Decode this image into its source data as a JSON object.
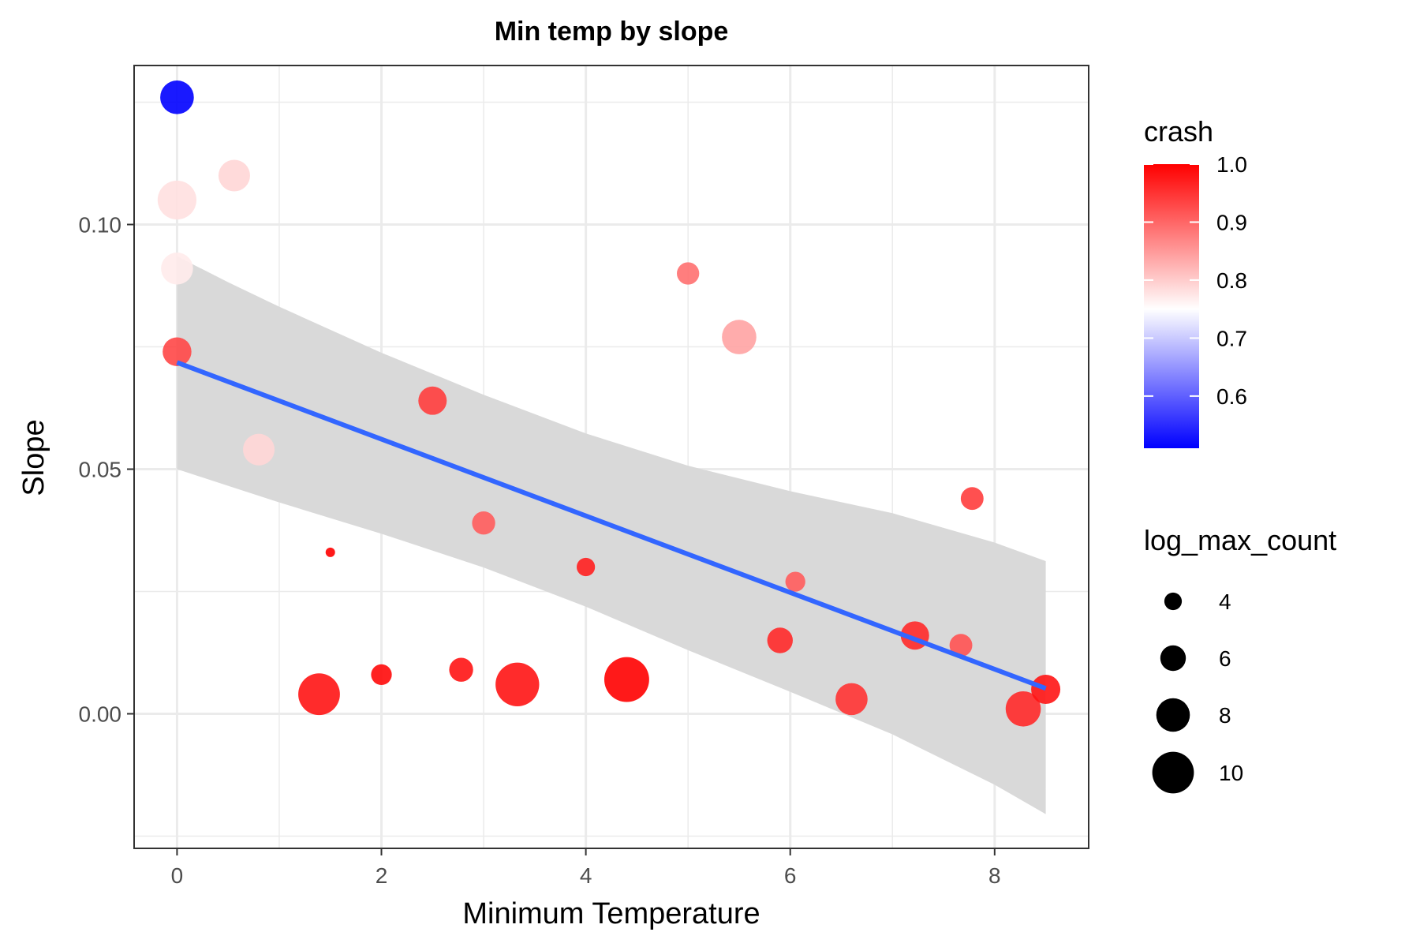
{
  "chart_data": {
    "type": "scatter",
    "title": "Min temp by slope",
    "xlabel": "Minimum Temperature",
    "ylabel": "Slope",
    "xlim": [
      -0.42,
      8.92
    ],
    "ylim": [
      -0.0275,
      0.1325
    ],
    "x_ticks": [
      0,
      2,
      4,
      6,
      8
    ],
    "x_tick_labels": [
      "0",
      "2",
      "4",
      "6",
      "8"
    ],
    "y_ticks": [
      0.0,
      0.05,
      0.1
    ],
    "y_tick_labels": [
      "0.00",
      "0.05",
      "0.10"
    ],
    "grid": true,
    "color_legend": {
      "title": "crash",
      "range": [
        0.51,
        1.0
      ],
      "ticks": [
        1.0,
        0.9,
        0.8,
        0.7,
        0.6
      ],
      "tick_labels": [
        "1.0",
        "0.9",
        "0.8",
        "0.7",
        "0.6"
      ],
      "low_color": "#0000ff",
      "mid_color": "#ffffff",
      "mid_value": 0.75,
      "high_color": "#ff0000"
    },
    "size_legend": {
      "title": "log_max_count",
      "values": [
        4,
        6,
        8,
        10
      ],
      "labels": [
        "4",
        "6",
        "8",
        "10"
      ]
    },
    "points": [
      {
        "x": 0.0,
        "y": 0.126,
        "crash": 0.51,
        "log_max_count": 8.0
      },
      {
        "x": 0.56,
        "y": 0.11,
        "crash": 0.79,
        "log_max_count": 7.5
      },
      {
        "x": 0.0,
        "y": 0.105,
        "crash": 0.78,
        "log_max_count": 9.3
      },
      {
        "x": 0.0,
        "y": 0.091,
        "crash": 0.77,
        "log_max_count": 7.6
      },
      {
        "x": 0.0,
        "y": 0.074,
        "crash": 0.93,
        "log_max_count": 6.8
      },
      {
        "x": 0.8,
        "y": 0.054,
        "crash": 0.79,
        "log_max_count": 7.5
      },
      {
        "x": 2.5,
        "y": 0.064,
        "crash": 0.94,
        "log_max_count": 6.7
      },
      {
        "x": 3.0,
        "y": 0.039,
        "crash": 0.91,
        "log_max_count": 5.4
      },
      {
        "x": 1.5,
        "y": 0.033,
        "crash": 1.0,
        "log_max_count": 2.0
      },
      {
        "x": 4.0,
        "y": 0.03,
        "crash": 0.97,
        "log_max_count": 4.2
      },
      {
        "x": 5.0,
        "y": 0.09,
        "crash": 0.89,
        "log_max_count": 5.2
      },
      {
        "x": 5.5,
        "y": 0.077,
        "crash": 0.84,
        "log_max_count": 8.2
      },
      {
        "x": 6.05,
        "y": 0.027,
        "crash": 0.91,
        "log_max_count": 4.6
      },
      {
        "x": 5.9,
        "y": 0.015,
        "crash": 0.96,
        "log_max_count": 6.0
      },
      {
        "x": 7.22,
        "y": 0.016,
        "crash": 0.96,
        "log_max_count": 6.7
      },
      {
        "x": 7.67,
        "y": 0.014,
        "crash": 0.92,
        "log_max_count": 5.3
      },
      {
        "x": 7.78,
        "y": 0.044,
        "crash": 0.94,
        "log_max_count": 5.3
      },
      {
        "x": 6.6,
        "y": 0.003,
        "crash": 0.95,
        "log_max_count": 7.6
      },
      {
        "x": 8.28,
        "y": 0.001,
        "crash": 0.96,
        "log_max_count": 8.4
      },
      {
        "x": 8.5,
        "y": 0.005,
        "crash": 0.98,
        "log_max_count": 6.9
      },
      {
        "x": 1.39,
        "y": 0.004,
        "crash": 0.98,
        "log_max_count": 10.0
      },
      {
        "x": 2.0,
        "y": 0.008,
        "crash": 0.99,
        "log_max_count": 4.8
      },
      {
        "x": 2.78,
        "y": 0.009,
        "crash": 0.98,
        "log_max_count": 5.6
      },
      {
        "x": 3.33,
        "y": 0.006,
        "crash": 0.98,
        "log_max_count": 10.5
      },
      {
        "x": 4.4,
        "y": 0.007,
        "crash": 1.0,
        "log_max_count": 10.8
      }
    ],
    "regression": {
      "x": [
        0,
        8.5
      ],
      "y": [
        0.0718,
        0.0052
      ],
      "color": "#3366ff",
      "band": {
        "x": [
          0,
          0.5,
          1,
          2,
          3,
          4,
          5,
          6,
          7,
          8,
          8.5
        ],
        "upper": [
          0.0935,
          0.0882,
          0.0832,
          0.0738,
          0.0652,
          0.0573,
          0.0507,
          0.0455,
          0.041,
          0.035,
          0.0312
        ],
        "lower": [
          0.05,
          0.0466,
          0.0432,
          0.0368,
          0.0299,
          0.0219,
          0.013,
          0.0045,
          -0.0042,
          -0.0145,
          -0.0205
        ],
        "color": "#d9d9d9"
      }
    }
  }
}
